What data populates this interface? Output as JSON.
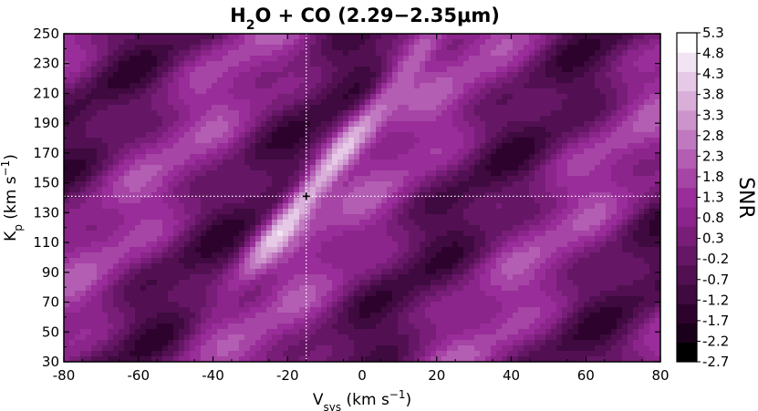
{
  "chart_data": {
    "type": "heatmap",
    "title": {
      "main": "H",
      "sub1": "2",
      "mid": "O + CO (2.29",
      "dash": "−",
      "end": "2.35μm)"
    },
    "xlabel": {
      "main": "V",
      "sub": "sys",
      "unit": " (km s",
      "sup": "−1",
      "close": ")"
    },
    "ylabel": {
      "main": "K",
      "sub": "p",
      "unit": " (km s",
      "sup": "−1",
      "close": ")"
    },
    "colorbar_label": "SNR",
    "xlim": [
      -80,
      80
    ],
    "ylim": [
      30,
      250
    ],
    "xticks": [
      -80,
      -60,
      -40,
      -20,
      0,
      20,
      40,
      60,
      80
    ],
    "xtick_labels": [
      "-80",
      "-60",
      "-40",
      "-20",
      "0",
      "20",
      "40",
      "60",
      "80"
    ],
    "yticks": [
      30,
      50,
      70,
      90,
      110,
      130,
      150,
      170,
      190,
      210,
      230,
      250
    ],
    "ytick_labels": [
      "30",
      "50",
      "70",
      "90",
      "110",
      "130",
      "150",
      "170",
      "190",
      "210",
      "230",
      "250"
    ],
    "colorbar_levels": [
      -2.7,
      -2.2,
      -1.7,
      -1.2,
      -0.7,
      -0.2,
      0.3,
      0.8,
      1.3,
      1.8,
      2.3,
      2.8,
      3.3,
      3.8,
      4.3,
      4.8,
      5.3
    ],
    "colorbar_labels": [
      "-2.7",
      "-2.2",
      "-1.7",
      "-1.2",
      "-0.7",
      "-0.2",
      "0.3",
      "0.8",
      "1.3",
      "1.8",
      "2.3",
      "2.8",
      "3.3",
      "3.8",
      "4.3",
      "4.8",
      "5.3"
    ],
    "colormap": [
      "#000000",
      "#1a001a",
      "#2d032d",
      "#3f0a3f",
      "#521052",
      "#651765",
      "#781e78",
      "#8b258b",
      "#992d99",
      "#a645a6",
      "#b35db3",
      "#c078c0",
      "#cc93cc",
      "#d9aed9",
      "#e6c9e6",
      "#f2e4f2",
      "#ffffff"
    ],
    "peak": {
      "vsys": -15,
      "kp": 141,
      "snr": 5.3
    },
    "marker_lines": {
      "vsys": -15,
      "kp": 141
    }
  }
}
